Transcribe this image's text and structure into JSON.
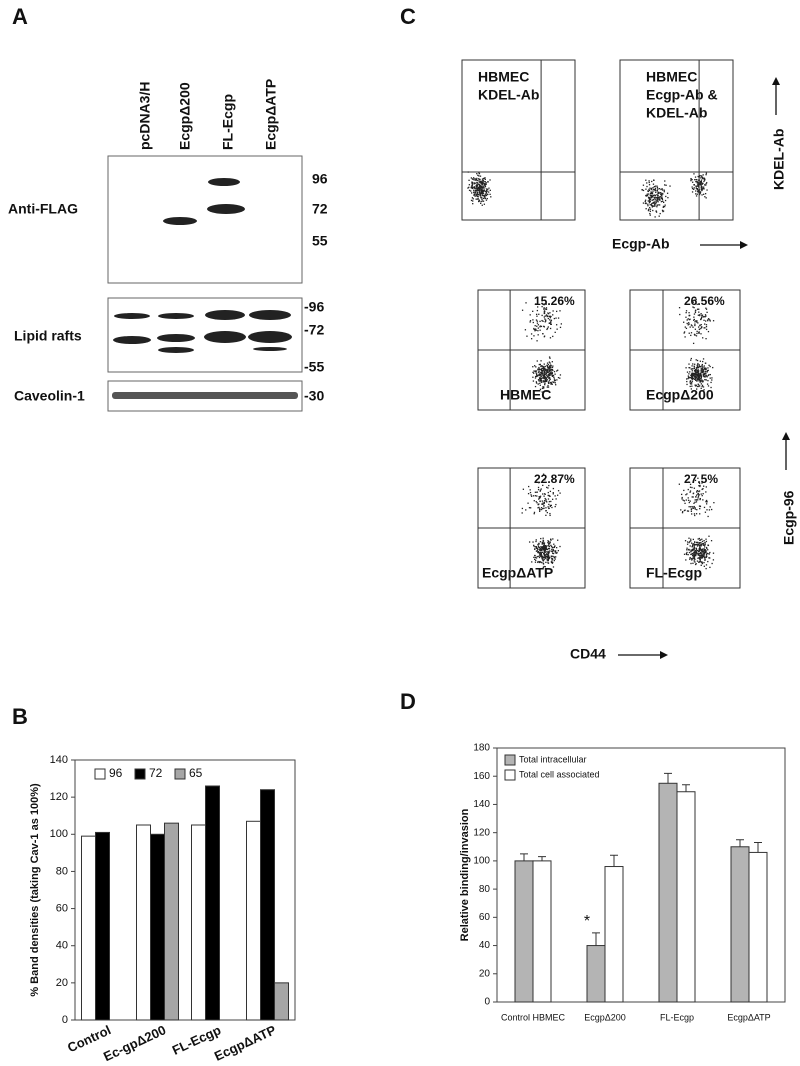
{
  "panel_a": {
    "label": "A",
    "lanes": [
      "pcDNA3/H",
      "EcgpΔ200",
      "FL-Ecgp",
      "EcgpΔATP"
    ],
    "rows": [
      "Anti-FLAG",
      "Lipid rafts",
      "Caveolin-1"
    ],
    "markers_flag": [
      "96",
      "72",
      "55"
    ],
    "markers_rafts": [
      "-96",
      "-72",
      "-55"
    ],
    "markers_cav": [
      "-30"
    ]
  },
  "panel_c": {
    "label": "C",
    "top_plots": [
      [
        "HBMEC",
        "KDEL-Ab"
      ],
      [
        "HBMEC",
        "Ecgp-Ab &",
        "KDEL-Ab"
      ]
    ],
    "top_x_label": "Ecgp-Ab",
    "top_y_label": "KDEL-Ab",
    "plots": [
      {
        "name": "HBMEC",
        "percent": "15.26%"
      },
      {
        "name": "EcgpΔ200",
        "percent": "26.56%"
      },
      {
        "name": "EcgpΔATP",
        "percent": "22.87%"
      },
      {
        "name": "FL-Ecgp",
        "percent": "27.5%"
      }
    ],
    "y_label": "Ecgp-96",
    "x_label": "CD44"
  },
  "chart_data": [
    {
      "type": "bar",
      "panel": "B",
      "ylabel": "% Band densities (taking Cav-1 as 100%)",
      "categories": [
        "Control",
        "Ec-gpΔ200",
        "FL-Ecgp",
        "EcgpΔATP"
      ],
      "series": [
        {
          "name": "96",
          "color": "#ffffff",
          "values": [
            99,
            105,
            105,
            107
          ]
        },
        {
          "name": "72",
          "color": "#000000",
          "values": [
            101,
            100,
            126,
            124
          ]
        },
        {
          "name": "65",
          "color": "#a6a6a6",
          "values": [
            null,
            106,
            null,
            20
          ]
        }
      ],
      "ylim": [
        0,
        140
      ],
      "yticks": [
        0,
        20,
        40,
        60,
        80,
        100,
        120,
        140
      ],
      "legend": "top-left"
    },
    {
      "type": "bar",
      "panel": "D",
      "ylabel": "Relative binding/invasion",
      "categories": [
        "Control HBMEC",
        "EcgpΔ200",
        "FL-Ecgp",
        "EcgpΔATP"
      ],
      "series": [
        {
          "name": "Total intracellular",
          "color": "#b4b4b4",
          "values": [
            100,
            40,
            155,
            110
          ],
          "errors": [
            5,
            9,
            7,
            5
          ]
        },
        {
          "name": "Total cell associated",
          "color": "#ffffff",
          "values": [
            100,
            96,
            149,
            106
          ],
          "errors": [
            3,
            8,
            5,
            7
          ]
        }
      ],
      "annotation": "*",
      "ylim": [
        0,
        180
      ],
      "yticks": [
        0,
        20,
        40,
        60,
        80,
        100,
        120,
        140,
        160,
        180
      ],
      "legend": "top-left"
    }
  ]
}
